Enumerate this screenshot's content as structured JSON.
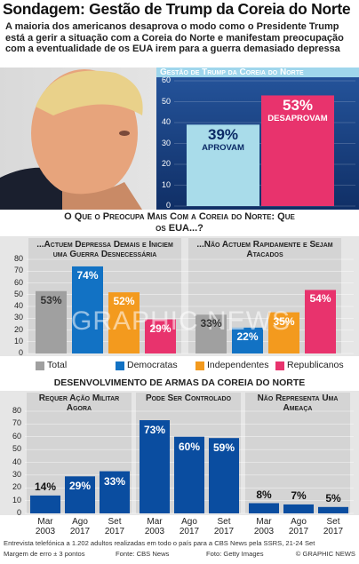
{
  "title": "Sondagem: Gestão de Trump da Coreia do Norte",
  "subtitle": "A maioria dos americanos desaprova o modo como o Presidente Trump está a gerir a situação com a Coreia do Norte e manifestam preocupação com a eventualidade de os EUA irem para a guerra demasiado depressa",
  "chart_data": [
    {
      "type": "bar",
      "title": "Gestão de Trump da Coreia do Norte",
      "categories": [
        "Aprovam",
        "Desaprovam"
      ],
      "values": [
        39,
        53
      ],
      "value_labels": [
        "39%",
        "53%"
      ],
      "colors": [
        "#a9dcea",
        "#e8336d"
      ],
      "ylim": [
        0,
        60
      ],
      "yticks": [
        0,
        10,
        20,
        30,
        40,
        50,
        60
      ],
      "grid": true
    },
    {
      "type": "bar",
      "title": "O Que o Preocupa Mais Com a Coreia do Norte: Que os EUA...?",
      "categories": [
        "...Actuem Depressa Demais e Iniciem uma Guerra Desnecessária",
        "...Não Actuem Rapidamente e Sejam Atacados"
      ],
      "series": [
        {
          "name": "Total",
          "color": "#a0a0a0",
          "values": [
            53,
            33
          ],
          "value_labels": [
            "53%",
            "33%"
          ]
        },
        {
          "name": "Democratas",
          "color": "#1272c4",
          "values": [
            74,
            22
          ],
          "value_labels": [
            "74%",
            "22%"
          ]
        },
        {
          "name": "Independentes",
          "color": "#f39a1e",
          "values": [
            52,
            35
          ],
          "value_labels": [
            "52%",
            "35%"
          ]
        },
        {
          "name": "Republicanos",
          "color": "#e8336d",
          "values": [
            29,
            54
          ],
          "value_labels": [
            "29%",
            "54%"
          ]
        }
      ],
      "ylim": [
        0,
        80
      ],
      "yticks": [
        0,
        10,
        20,
        30,
        40,
        50,
        60,
        70,
        80
      ],
      "grid": true
    },
    {
      "type": "bar",
      "title": "Desenvolvimento de armas da Coreia do Norte",
      "categories": [
        "Mar 2003",
        "Ago 2017",
        "Set 2017"
      ],
      "color": "#0a4da0",
      "panels": [
        {
          "title": "Requer Ação Militar Agora",
          "values": [
            14,
            29,
            33
          ],
          "value_labels": [
            "14%",
            "29%",
            "33%"
          ]
        },
        {
          "title": "Pode Ser Controlado",
          "values": [
            73,
            60,
            59
          ],
          "value_labels": [
            "73%",
            "60%",
            "59%"
          ]
        },
        {
          "title": "Não Representa Uma Ameaça",
          "values": [
            8,
            7,
            5
          ],
          "value_labels": [
            "8%",
            "7%",
            "5%"
          ]
        }
      ],
      "ylim": [
        0,
        80
      ],
      "yticks": [
        0,
        10,
        20,
        30,
        40,
        50,
        60,
        70,
        80
      ],
      "grid": true
    }
  ],
  "footer": {
    "note": "Entrevista telefónica a 1.202 adultos realizadas em todo o país para a CBS News pela SSRS, 21-24 Set",
    "margin": "Margem de erro ± 3 pontos",
    "source": "Fonte: CBS News",
    "photo": "Foto: Getty Images",
    "credit": "© GRAPHIC NEWS"
  },
  "watermark": "GRAPHIC NEWS"
}
